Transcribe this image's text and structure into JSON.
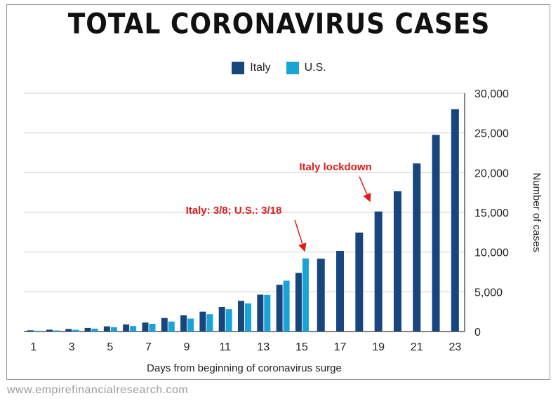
{
  "chart_data": {
    "type": "bar",
    "title": "TOTAL CORONAVIRUS CASES",
    "xlabel": "Days from beginning of coronavirus surge",
    "ylabel": "Number of cases",
    "ylim": [
      0,
      30000
    ],
    "yticks": [
      0,
      5000,
      10000,
      15000,
      20000,
      25000,
      30000
    ],
    "ytick_labels": [
      "0",
      "5,000",
      "10,000",
      "15,000",
      "20,000",
      "25,000",
      "30,000"
    ],
    "x": [
      1,
      2,
      3,
      4,
      5,
      6,
      7,
      8,
      9,
      10,
      11,
      12,
      13,
      14,
      15,
      16,
      17,
      18,
      19,
      20,
      21,
      22,
      23
    ],
    "xtick_labels": [
      "1",
      "3",
      "5",
      "7",
      "9",
      "11",
      "13",
      "15",
      "17",
      "19",
      "21",
      "23"
    ],
    "grid": true,
    "legend_position": "top-center",
    "series": [
      {
        "name": "Italy",
        "color": "#17457e",
        "values": [
          150,
          230,
          320,
          450,
          650,
          890,
          1130,
          1700,
          2040,
          2500,
          3090,
          3860,
          4640,
          5880,
          7380,
          9170,
          10150,
          12460,
          15110,
          17660,
          21160,
          24750,
          27980
        ]
      },
      {
        "name": "U.S.",
        "color": "#1aa3d8",
        "values": [
          100,
          130,
          220,
          360,
          540,
          690,
          970,
          1260,
          1630,
          2180,
          2810,
          3540,
          4600,
          6400,
          9200,
          null,
          null,
          null,
          null,
          null,
          null,
          null,
          null
        ]
      }
    ],
    "annotations": [
      {
        "text": "Italy lockdown",
        "points_to_day": 19
      },
      {
        "text": "Italy: 3/8; U.S.: 3/18",
        "points_to_day": 15
      }
    ]
  },
  "footer": "www.empirefinancialresearch.com"
}
